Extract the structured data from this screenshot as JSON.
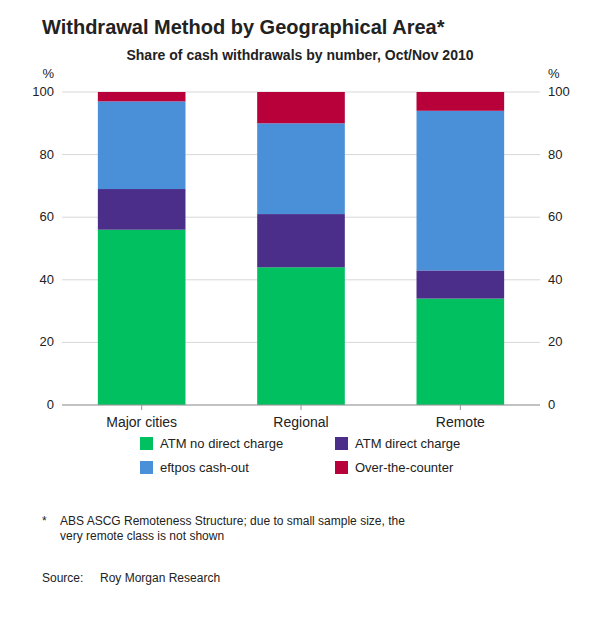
{
  "chart_data": {
    "type": "bar",
    "stacked": true,
    "title": "Withdrawal Method by Geographical Area*",
    "subtitle": "Share of cash withdrawals by number, Oct/Nov 2010",
    "categories": [
      "Major cities",
      "Regional",
      "Remote"
    ],
    "series": [
      {
        "name": "ATM no direct charge",
        "color": "#00C060",
        "values": [
          56,
          44,
          34
        ]
      },
      {
        "name": "ATM direct charge",
        "color": "#4B2D8A",
        "values": [
          13,
          17,
          9
        ]
      },
      {
        "name": "eftpos cash-out",
        "color": "#4A90D9",
        "values": [
          28,
          29,
          51
        ]
      },
      {
        "name": "Over-the-counter",
        "color": "#B8003A",
        "values": [
          3,
          10,
          6
        ]
      }
    ],
    "ylabel": "%",
    "ylim": [
      0,
      100
    ],
    "yticks": [
      0,
      20,
      40,
      60,
      80,
      100
    ],
    "y2label": "%",
    "y2lim": [
      0,
      100
    ],
    "y2ticks": [
      0,
      20,
      40,
      60,
      80,
      100
    ],
    "grid": true,
    "legend": "bottom",
    "annotations": [
      "*",
      "ABS ASCG Remoteness Structure; due to small sample size, the\nvery remote class is not shown",
      "Source:",
      "Roy Morgan Research"
    ]
  }
}
